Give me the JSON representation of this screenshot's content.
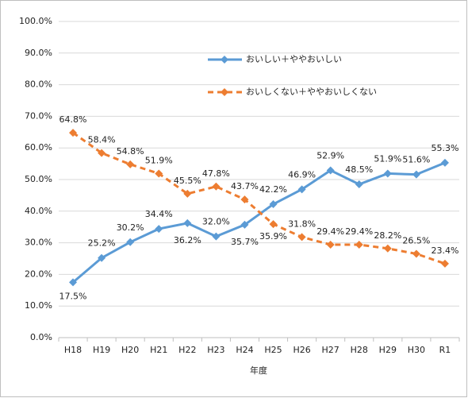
{
  "chart_data": {
    "type": "line",
    "x_label": "年度",
    "categories": [
      "H18",
      "H19",
      "H20",
      "H21",
      "H22",
      "H23",
      "H24",
      "H25",
      "H26",
      "H27",
      "H28",
      "H29",
      "H30",
      "R1"
    ],
    "series": [
      {
        "name": "おいしい＋ややおいしい",
        "color": "#5b9bd5",
        "dashed": false,
        "values": [
          17.5,
          25.2,
          30.2,
          34.4,
          36.2,
          32.0,
          35.7,
          42.2,
          46.9,
          52.9,
          48.5,
          51.9,
          51.6,
          55.3
        ],
        "value_labels": [
          "17.5%",
          "25.2%",
          "30.2%",
          "34.4%",
          "36.2%",
          "32.0%",
          "35.7%",
          "42.2%",
          "46.9%",
          "52.9%",
          "48.5%",
          "51.9%",
          "51.6%",
          "55.3%"
        ]
      },
      {
        "name": "おいしくない＋ややおいしくない",
        "color": "#ed7d31",
        "dashed": true,
        "values": [
          64.8,
          58.4,
          54.8,
          51.9,
          45.5,
          47.8,
          43.7,
          35.9,
          31.8,
          29.4,
          29.4,
          28.2,
          26.5,
          23.4
        ],
        "value_labels": [
          "64.8%",
          "58.4%",
          "54.8%",
          "51.9%",
          "45.5%",
          "47.8%",
          "43.7%",
          "35.9%",
          "31.8%",
          "29.4%",
          "29.4%",
          "28.2%",
          "26.5%",
          "23.4%"
        ]
      }
    ],
    "ylim": [
      0,
      100
    ],
    "yticks": [
      {
        "value": 0,
        "label": "0.0%"
      },
      {
        "value": 10,
        "label": "10.0%"
      },
      {
        "value": 20,
        "label": "20.0%"
      },
      {
        "value": 30,
        "label": "30.0%"
      },
      {
        "value": 40,
        "label": "40.0%"
      },
      {
        "value": 50,
        "label": "50.0%"
      },
      {
        "value": 60,
        "label": "60.0%"
      },
      {
        "value": 70,
        "label": "70.0%"
      },
      {
        "value": 80,
        "label": "80.0%"
      },
      {
        "value": 90,
        "label": "90.0%"
      },
      {
        "value": 100,
        "label": "100.0%"
      }
    ],
    "grid": true
  }
}
